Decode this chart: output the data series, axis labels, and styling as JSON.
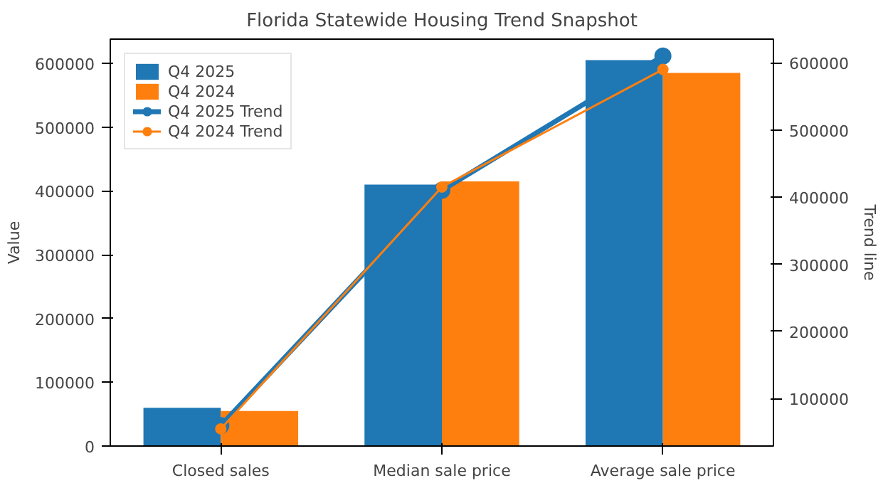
{
  "chart_data": {
    "type": "bar",
    "title": "Florida Statewide Housing Trend Snapshot",
    "ylabel": "Value",
    "y2label": "Trend line",
    "categories": [
      "Closed sales",
      "Median sale price",
      "Average sale price"
    ],
    "series": [
      {
        "name": "Q4 2025",
        "color": "#1f77b4",
        "values": [
          60000,
          410000,
          605000
        ]
      },
      {
        "name": "Q4 2024",
        "color": "#ff7f0e",
        "values": [
          55000,
          415000,
          585000
        ]
      },
      {
        "name": "Q4 2025 Trend",
        "type": "line",
        "axis": "y2",
        "color": "#1f77b4",
        "values": [
          60000,
          410000,
          610000
        ]
      },
      {
        "name": "Q4 2024 Trend",
        "type": "line",
        "axis": "y2",
        "color": "#ff7f0e",
        "values": [
          55000,
          415000,
          590000
        ]
      }
    ],
    "ylim": [
      0,
      638000
    ],
    "yticks": [
      0,
      100000,
      200000,
      300000,
      400000,
      500000,
      600000
    ],
    "y2lim": [
      29500,
      635100
    ],
    "y2ticks": [
      100000,
      200000,
      300000,
      400000,
      500000,
      600000
    ],
    "legend": "top left",
    "marker": "circle",
    "grid": false
  }
}
